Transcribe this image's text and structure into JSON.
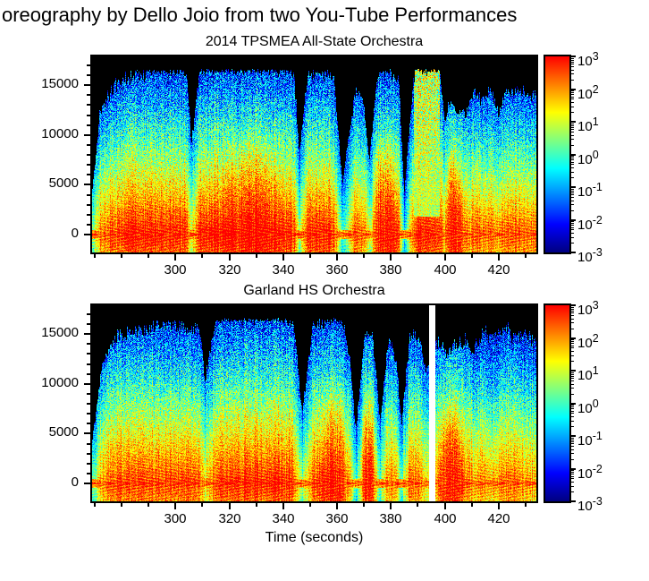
{
  "figure": {
    "title": "oreography by Dello Joio from two You-Tube Performances",
    "xlabel": "Time (seconds)",
    "background": "#ffffff"
  },
  "axes": {
    "x_minor_step": 10,
    "y_minor_step": 1000
  },
  "chart_data": [
    {
      "type": "heatmap",
      "subtype": "spectrogram",
      "title": "2014 TPSMEA All-State Orchestra",
      "xlabel": "",
      "ylabel": "",
      "xlim": [
        269,
        434
      ],
      "ylim": [
        -1800,
        17900
      ],
      "xticks": [
        300,
        320,
        340,
        360,
        380,
        400,
        420
      ],
      "yticks": [
        0,
        5000,
        10000,
        15000
      ],
      "colorbar": {
        "scale": "log",
        "colormap": "jet",
        "base": 10,
        "tick_exponents": [
          3,
          2,
          1,
          0,
          -1,
          -2,
          -3
        ]
      },
      "falloff_curve": 1.15,
      "noise_seed": 1,
      "flat_regions": [
        [
          388.5,
          398,
          0.9
        ]
      ],
      "gaps": [],
      "envelope_format": [
        "time_s",
        "log10_power_low_freq",
        "max_freq_khz",
        "falloff_override"
      ],
      "envelope": [
        [
          269,
          0.5,
          4,
          null
        ],
        [
          272,
          2.3,
          12,
          null
        ],
        [
          277,
          2.7,
          14.5,
          null
        ],
        [
          283,
          2.8,
          15.5,
          null
        ],
        [
          290,
          2.9,
          16,
          null
        ],
        [
          298,
          2.9,
          16.2,
          null
        ],
        [
          304,
          2.9,
          16,
          null
        ],
        [
          306,
          1.2,
          9,
          null
        ],
        [
          309,
          2.9,
          16.3,
          null
        ],
        [
          316,
          3.0,
          16.5,
          null
        ],
        [
          324,
          3.0,
          16.5,
          1.5
        ],
        [
          332,
          3.0,
          16.5,
          1.5
        ],
        [
          340,
          3.0,
          16.5,
          null
        ],
        [
          344,
          2.8,
          16,
          null
        ],
        [
          346,
          0.8,
          8,
          null
        ],
        [
          349,
          2.8,
          15.5,
          null
        ],
        [
          355,
          2.9,
          16,
          null
        ],
        [
          359,
          2.6,
          15,
          null
        ],
        [
          362,
          0.2,
          5,
          null
        ],
        [
          364,
          1.0,
          9,
          null
        ],
        [
          367,
          2.7,
          14.5,
          null
        ],
        [
          370,
          2.4,
          13,
          null
        ],
        [
          372,
          1.0,
          7,
          null
        ],
        [
          375,
          3.0,
          16,
          1.6
        ],
        [
          379,
          3.0,
          16,
          1.6
        ],
        [
          383,
          2.7,
          15,
          null
        ],
        [
          385,
          -0.5,
          4,
          null
        ],
        [
          387,
          1.6,
          11,
          null
        ],
        [
          389,
          2.9,
          16.4,
          null
        ],
        [
          394,
          2.9,
          16.4,
          null
        ],
        [
          398,
          2.9,
          16.4,
          null
        ],
        [
          400,
          2.1,
          11,
          null
        ],
        [
          402,
          2.9,
          13,
          2.2
        ],
        [
          405,
          2.7,
          12,
          2.0
        ],
        [
          408,
          2.1,
          12,
          null
        ],
        [
          411,
          2.5,
          14,
          null
        ],
        [
          414,
          2.2,
          13,
          null
        ],
        [
          417,
          2.6,
          14.5,
          null
        ],
        [
          420,
          2.0,
          12,
          null
        ],
        [
          423,
          2.6,
          14.5,
          null
        ],
        [
          426,
          2.5,
          14,
          null
        ],
        [
          430,
          2.4,
          14,
          null
        ],
        [
          434,
          2.3,
          13.5,
          null
        ]
      ]
    },
    {
      "type": "heatmap",
      "subtype": "spectrogram",
      "title": "Garland HS Orchestra",
      "xlabel": "Time (seconds)",
      "ylabel": "",
      "xlim": [
        269,
        434
      ],
      "ylim": [
        -1800,
        17900
      ],
      "xticks": [
        300,
        320,
        340,
        360,
        380,
        400,
        420
      ],
      "yticks": [
        0,
        5000,
        10000,
        15000
      ],
      "colorbar": {
        "scale": "log",
        "colormap": "jet",
        "base": 10,
        "tick_exponents": [
          3,
          2,
          1,
          0,
          -1,
          -2,
          -3
        ]
      },
      "falloff_curve": 0.78,
      "noise_seed": 2,
      "flat_regions": [],
      "gaps": [
        [
          394.3,
          396.6
        ]
      ],
      "envelope_format": [
        "time_s",
        "log10_power_low_freq",
        "max_freq_khz",
        "falloff_override"
      ],
      "envelope": [
        [
          269,
          0.3,
          4,
          null
        ],
        [
          273,
          2.3,
          12,
          null
        ],
        [
          279,
          2.7,
          14.5,
          null
        ],
        [
          285,
          2.8,
          15,
          null
        ],
        [
          292,
          2.8,
          15.5,
          null
        ],
        [
          299,
          2.8,
          15.5,
          null
        ],
        [
          305,
          2.8,
          15.2,
          null
        ],
        [
          309,
          2.7,
          15,
          null
        ],
        [
          311,
          1.5,
          10,
          null
        ],
        [
          315,
          2.9,
          16.3,
          null
        ],
        [
          322,
          3.0,
          16.5,
          null
        ],
        [
          330,
          3.0,
          16.5,
          null
        ],
        [
          338,
          3.0,
          16.5,
          null
        ],
        [
          344,
          2.9,
          16,
          null
        ],
        [
          347,
          0.8,
          7,
          null
        ],
        [
          351,
          2.8,
          15.5,
          null
        ],
        [
          357,
          2.9,
          16,
          1.5
        ],
        [
          362,
          2.9,
          16,
          1.5
        ],
        [
          365,
          2.0,
          12,
          null
        ],
        [
          367,
          0.0,
          5,
          null
        ],
        [
          370,
          2.8,
          14,
          1.7
        ],
        [
          373,
          2.9,
          15,
          1.7
        ],
        [
          376,
          0.5,
          6,
          null
        ],
        [
          379,
          2.5,
          14,
          null
        ],
        [
          382,
          2.0,
          12,
          null
        ],
        [
          384,
          0.3,
          6,
          null
        ],
        [
          387,
          2.5,
          14.5,
          null
        ],
        [
          391,
          2.3,
          14,
          null
        ],
        [
          393,
          1.6,
          11,
          null
        ],
        [
          397,
          2.4,
          14,
          null
        ],
        [
          400,
          2.8,
          13,
          2.0
        ],
        [
          404,
          2.8,
          13.5,
          2.0
        ],
        [
          408,
          2.5,
          14,
          null
        ],
        [
          411,
          2.2,
          13,
          null
        ],
        [
          414,
          2.4,
          15,
          null
        ],
        [
          417,
          2.0,
          14.5,
          null
        ],
        [
          420,
          2.3,
          15,
          null
        ],
        [
          423,
          2.5,
          15,
          null
        ],
        [
          426,
          2.4,
          14.5,
          null
        ],
        [
          430,
          2.3,
          14.5,
          null
        ],
        [
          434,
          2.2,
          14,
          null
        ]
      ]
    }
  ]
}
